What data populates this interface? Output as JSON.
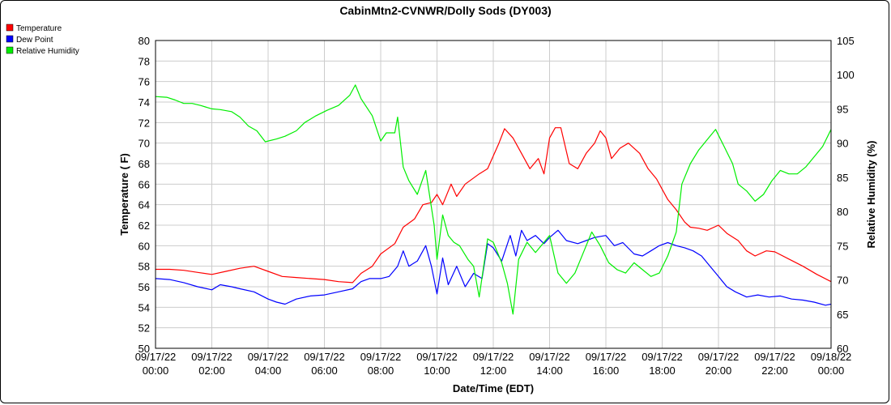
{
  "chart_data": {
    "type": "line",
    "title": "CabinMtn2-CVNWR/Dolly Sods (DY003)",
    "xlabel": "Date/Time (EDT)",
    "ylabel": "Temperature ( F)",
    "y2label": "Relative Humidity (%)",
    "ylim": [
      50,
      80
    ],
    "y2lim": [
      60,
      105
    ],
    "yticks": [
      "50",
      "52",
      "54",
      "56",
      "58",
      "60",
      "62",
      "64",
      "66",
      "68",
      "70",
      "72",
      "74",
      "76",
      "78",
      "80"
    ],
    "y2ticks": [
      "60",
      "65",
      "70",
      "75",
      "80",
      "85",
      "90",
      "95",
      "100",
      "105"
    ],
    "xlim": [
      0,
      24
    ],
    "xticks": [
      {
        "date": "09/17/22",
        "time": "00:00"
      },
      {
        "date": "09/17/22",
        "time": "02:00"
      },
      {
        "date": "09/17/22",
        "time": "04:00"
      },
      {
        "date": "09/17/22",
        "time": "06:00"
      },
      {
        "date": "09/17/22",
        "time": "08:00"
      },
      {
        "date": "09/17/22",
        "time": "10:00"
      },
      {
        "date": "09/17/22",
        "time": "12:00"
      },
      {
        "date": "09/17/22",
        "time": "14:00"
      },
      {
        "date": "09/17/22",
        "time": "16:00"
      },
      {
        "date": "09/17/22",
        "time": "18:00"
      },
      {
        "date": "09/17/22",
        "time": "20:00"
      },
      {
        "date": "09/17/22",
        "time": "22:00"
      },
      {
        "date": "09/18/22",
        "time": "00:00"
      }
    ],
    "grid": true,
    "legend_position": "top-left",
    "series": [
      {
        "name": "Temperature",
        "color": "#ff0000",
        "axis": "left",
        "points": [
          [
            0,
            57.7
          ],
          [
            0.5,
            57.7
          ],
          [
            1,
            57.6
          ],
          [
            1.5,
            57.4
          ],
          [
            2,
            57.2
          ],
          [
            2.5,
            57.5
          ],
          [
            3,
            57.8
          ],
          [
            3.5,
            58.0
          ],
          [
            4,
            57.5
          ],
          [
            4.5,
            57.0
          ],
          [
            5,
            56.9
          ],
          [
            5.5,
            56.8
          ],
          [
            6,
            56.7
          ],
          [
            6.5,
            56.5
          ],
          [
            7,
            56.4
          ],
          [
            7.3,
            57.3
          ],
          [
            7.7,
            58.0
          ],
          [
            8,
            59.2
          ],
          [
            8.5,
            60.2
          ],
          [
            8.8,
            61.8
          ],
          [
            9.2,
            62.6
          ],
          [
            9.5,
            64.0
          ],
          [
            9.8,
            64.2
          ],
          [
            10,
            65.0
          ],
          [
            10.2,
            64.0
          ],
          [
            10.5,
            66.0
          ],
          [
            10.7,
            64.8
          ],
          [
            11,
            66.0
          ],
          [
            11.5,
            67.0
          ],
          [
            11.8,
            67.5
          ],
          [
            12.2,
            70.0
          ],
          [
            12.4,
            71.4
          ],
          [
            12.7,
            70.5
          ],
          [
            13,
            69.0
          ],
          [
            13.3,
            67.5
          ],
          [
            13.6,
            68.5
          ],
          [
            13.8,
            67.0
          ],
          [
            14,
            70.5
          ],
          [
            14.2,
            71.5
          ],
          [
            14.4,
            71.5
          ],
          [
            14.7,
            68.0
          ],
          [
            15,
            67.5
          ],
          [
            15.3,
            69.0
          ],
          [
            15.6,
            70.0
          ],
          [
            15.8,
            71.2
          ],
          [
            16,
            70.5
          ],
          [
            16.2,
            68.5
          ],
          [
            16.5,
            69.5
          ],
          [
            16.8,
            70.0
          ],
          [
            17.2,
            69.0
          ],
          [
            17.5,
            67.5
          ],
          [
            17.8,
            66.5
          ],
          [
            18,
            65.5
          ],
          [
            18.2,
            64.5
          ],
          [
            18.5,
            63.5
          ],
          [
            18.8,
            62.3
          ],
          [
            19,
            61.8
          ],
          [
            19.3,
            61.7
          ],
          [
            19.6,
            61.5
          ],
          [
            20,
            62.0
          ],
          [
            20.3,
            61.2
          ],
          [
            20.7,
            60.5
          ],
          [
            21,
            59.5
          ],
          [
            21.3,
            59.0
          ],
          [
            21.7,
            59.5
          ],
          [
            22,
            59.4
          ],
          [
            22.5,
            58.7
          ],
          [
            23,
            58.0
          ],
          [
            23.5,
            57.2
          ],
          [
            24,
            56.5
          ]
        ]
      },
      {
        "name": "Dew Point",
        "color": "#0000ff",
        "axis": "left",
        "points": [
          [
            0,
            56.8
          ],
          [
            0.5,
            56.7
          ],
          [
            1,
            56.4
          ],
          [
            1.5,
            56.0
          ],
          [
            2,
            55.7
          ],
          [
            2.3,
            56.2
          ],
          [
            2.7,
            56.0
          ],
          [
            3,
            55.8
          ],
          [
            3.5,
            55.5
          ],
          [
            4,
            54.8
          ],
          [
            4.3,
            54.5
          ],
          [
            4.6,
            54.3
          ],
          [
            5,
            54.8
          ],
          [
            5.5,
            55.1
          ],
          [
            6,
            55.2
          ],
          [
            6.5,
            55.5
          ],
          [
            7,
            55.8
          ],
          [
            7.3,
            56.5
          ],
          [
            7.6,
            56.8
          ],
          [
            8,
            56.8
          ],
          [
            8.3,
            57.0
          ],
          [
            8.6,
            58.0
          ],
          [
            8.8,
            59.5
          ],
          [
            9.0,
            58.0
          ],
          [
            9.3,
            58.5
          ],
          [
            9.6,
            60.0
          ],
          [
            9.8,
            58.0
          ],
          [
            10,
            55.3
          ],
          [
            10.2,
            58.8
          ],
          [
            10.4,
            56.2
          ],
          [
            10.7,
            58.0
          ],
          [
            11,
            56.0
          ],
          [
            11.3,
            57.3
          ],
          [
            11.6,
            56.8
          ],
          [
            11.8,
            60.2
          ],
          [
            12.0,
            59.8
          ],
          [
            12.3,
            58.5
          ],
          [
            12.6,
            61.0
          ],
          [
            12.8,
            59.0
          ],
          [
            13.0,
            61.5
          ],
          [
            13.2,
            60.5
          ],
          [
            13.5,
            61.0
          ],
          [
            13.8,
            60.2
          ],
          [
            14.0,
            60.8
          ],
          [
            14.3,
            61.5
          ],
          [
            14.6,
            60.5
          ],
          [
            15,
            60.2
          ],
          [
            15.3,
            60.5
          ],
          [
            15.6,
            60.8
          ],
          [
            16,
            61.0
          ],
          [
            16.3,
            60.0
          ],
          [
            16.6,
            60.3
          ],
          [
            17,
            59.2
          ],
          [
            17.3,
            59.0
          ],
          [
            17.6,
            59.5
          ],
          [
            17.9,
            60.0
          ],
          [
            18.2,
            60.3
          ],
          [
            18.5,
            60.0
          ],
          [
            18.8,
            59.8
          ],
          [
            19.1,
            59.5
          ],
          [
            19.4,
            59.0
          ],
          [
            19.7,
            58.0
          ],
          [
            20,
            57.0
          ],
          [
            20.3,
            56.0
          ],
          [
            20.6,
            55.5
          ],
          [
            21,
            55.0
          ],
          [
            21.4,
            55.2
          ],
          [
            21.8,
            55.0
          ],
          [
            22.2,
            55.1
          ],
          [
            22.6,
            54.8
          ],
          [
            23,
            54.7
          ],
          [
            23.4,
            54.5
          ],
          [
            23.8,
            54.2
          ],
          [
            24,
            54.3
          ]
        ]
      },
      {
        "name": "Relative Humidity",
        "color": "#00ee00",
        "axis": "right",
        "points": [
          [
            0,
            96.8
          ],
          [
            0.4,
            96.7
          ],
          [
            0.7,
            96.3
          ],
          [
            1,
            95.8
          ],
          [
            1.3,
            95.8
          ],
          [
            1.6,
            95.5
          ],
          [
            2,
            95.0
          ],
          [
            2.3,
            94.9
          ],
          [
            2.7,
            94.6
          ],
          [
            3,
            93.8
          ],
          [
            3.3,
            92.5
          ],
          [
            3.6,
            91.8
          ],
          [
            3.9,
            90.2
          ],
          [
            4.3,
            90.6
          ],
          [
            4.6,
            91.0
          ],
          [
            5,
            91.8
          ],
          [
            5.3,
            93.0
          ],
          [
            5.7,
            94.0
          ],
          [
            6.1,
            94.8
          ],
          [
            6.5,
            95.5
          ],
          [
            6.9,
            97.0
          ],
          [
            7.1,
            98.5
          ],
          [
            7.3,
            96.5
          ],
          [
            7.7,
            94.0
          ],
          [
            8,
            90.3
          ],
          [
            8.2,
            91.5
          ],
          [
            8.5,
            91.5
          ],
          [
            8.6,
            93.8
          ],
          [
            8.8,
            86.5
          ],
          [
            9.0,
            84.5
          ],
          [
            9.3,
            82.5
          ],
          [
            9.6,
            86.0
          ],
          [
            9.9,
            78.0
          ],
          [
            10.0,
            73.0
          ],
          [
            10.2,
            79.5
          ],
          [
            10.4,
            76.5
          ],
          [
            10.6,
            75.5
          ],
          [
            10.8,
            75.0
          ],
          [
            11.1,
            73.0
          ],
          [
            11.3,
            72.0
          ],
          [
            11.5,
            67.5
          ],
          [
            11.8,
            76.0
          ],
          [
            12.0,
            75.5
          ],
          [
            12.3,
            72.5
          ],
          [
            12.5,
            69.5
          ],
          [
            12.7,
            65.0
          ],
          [
            12.9,
            73.0
          ],
          [
            13.2,
            75.5
          ],
          [
            13.5,
            74.0
          ],
          [
            13.8,
            75.5
          ],
          [
            14.0,
            76.5
          ],
          [
            14.3,
            71.0
          ],
          [
            14.6,
            69.5
          ],
          [
            14.9,
            71.0
          ],
          [
            15.2,
            74.0
          ],
          [
            15.5,
            77.0
          ],
          [
            15.8,
            75.0
          ],
          [
            16.1,
            72.5
          ],
          [
            16.4,
            71.5
          ],
          [
            16.7,
            71.0
          ],
          [
            17,
            72.5
          ],
          [
            17.3,
            71.5
          ],
          [
            17.6,
            70.5
          ],
          [
            17.9,
            71.0
          ],
          [
            18.2,
            73.5
          ],
          [
            18.5,
            77.0
          ],
          [
            18.7,
            84.0
          ],
          [
            19.0,
            87.0
          ],
          [
            19.3,
            89.0
          ],
          [
            19.6,
            90.5
          ],
          [
            19.9,
            92.0
          ],
          [
            20.2,
            89.5
          ],
          [
            20.5,
            87.0
          ],
          [
            20.7,
            84.0
          ],
          [
            21.0,
            83.0
          ],
          [
            21.3,
            81.5
          ],
          [
            21.6,
            82.5
          ],
          [
            21.9,
            84.5
          ],
          [
            22.2,
            86.0
          ],
          [
            22.5,
            85.5
          ],
          [
            22.8,
            85.5
          ],
          [
            23.1,
            86.5
          ],
          [
            23.4,
            88.0
          ],
          [
            23.7,
            89.5
          ],
          [
            24,
            92.0
          ]
        ]
      }
    ]
  }
}
